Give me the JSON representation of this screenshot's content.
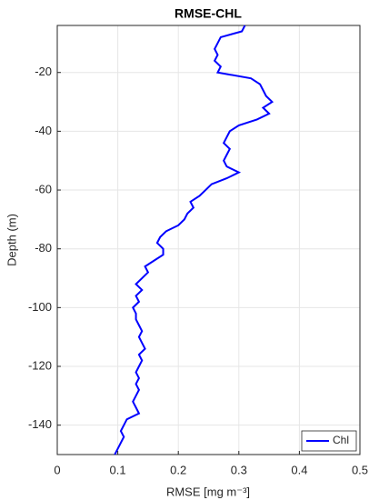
{
  "chart_data": {
    "type": "line",
    "title": "RMSE-CHL",
    "xlabel": "RMSE [mg m⁻³]",
    "ylabel": "Depth (m)",
    "y": [
      -4,
      -6,
      -8,
      -10,
      -12,
      -14,
      -16,
      -18,
      -20,
      -22,
      -24,
      -26,
      -28,
      -30,
      -32,
      -34,
      -36,
      -38,
      -40,
      -42,
      -44,
      -46,
      -48,
      -50,
      -52,
      -54,
      -56,
      -58,
      -60,
      -62,
      -64,
      -66,
      -68,
      -70,
      -72,
      -74,
      -76,
      -78,
      -80,
      -82,
      -84,
      -86,
      -88,
      -90,
      -92,
      -94,
      -96,
      -98,
      -100,
      -102,
      -104,
      -106,
      -108,
      -110,
      -112,
      -114,
      -116,
      -118,
      -120,
      -122,
      -124,
      -126,
      -128,
      -130,
      -132,
      -134,
      -136,
      -138,
      -140,
      -142,
      -144,
      -146,
      -148,
      -150
    ],
    "series": [
      {
        "name": "Chl",
        "color": "#0000ff",
        "values": [
          0.31,
          0.305,
          0.27,
          0.265,
          0.26,
          0.265,
          0.26,
          0.27,
          0.265,
          0.32,
          0.335,
          0.34,
          0.345,
          0.355,
          0.34,
          0.35,
          0.33,
          0.3,
          0.285,
          0.28,
          0.275,
          0.285,
          0.28,
          0.275,
          0.28,
          0.3,
          0.28,
          0.255,
          0.245,
          0.235,
          0.22,
          0.225,
          0.215,
          0.21,
          0.2,
          0.18,
          0.17,
          0.165,
          0.175,
          0.175,
          0.16,
          0.145,
          0.15,
          0.14,
          0.13,
          0.14,
          0.13,
          0.135,
          0.125,
          0.13,
          0.13,
          0.135,
          0.14,
          0.135,
          0.14,
          0.145,
          0.135,
          0.14,
          0.135,
          0.13,
          0.135,
          0.13,
          0.135,
          0.13,
          0.125,
          0.13,
          0.135,
          0.115,
          0.11,
          0.105,
          0.11,
          0.105,
          0.1,
          0.095
        ]
      }
    ],
    "xlim": [
      0,
      0.5
    ],
    "xticks": [
      0,
      0.1,
      0.2,
      0.3,
      0.4,
      0.5
    ],
    "ylim": [
      -150,
      -4
    ],
    "yticks": [
      -140,
      -120,
      -100,
      -80,
      -60,
      -40,
      -20
    ],
    "grid": true,
    "legend": "southeast"
  }
}
